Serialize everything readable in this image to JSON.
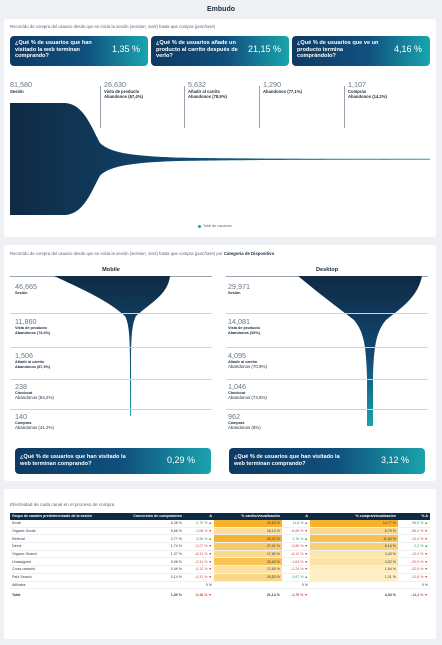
{
  "header": {
    "title": "Embudo"
  },
  "section1": {
    "desc_pre": "Recorrido de compra del usuario desde que se inicia la sesión (",
    "desc_em1": "session_start",
    "desc_mid": ") hasta que compra (",
    "desc_em2": "purchase",
    "desc_post": ")",
    "kpis": [
      {
        "question": "¿Qué % de usuarios que han visitado la web terminan comprando?",
        "value": "1,35 %"
      },
      {
        "question": "¿Qué % de usuarios añade un producto al carrito después de verlo?",
        "value": "21,15 %"
      },
      {
        "question": "¿Qué % de usuarios que ve un producto termina comprándolo?",
        "value": "4,16 %"
      }
    ],
    "stages": [
      {
        "value": "81,580",
        "label": "Sesión",
        "abandon": ""
      },
      {
        "value": "26,630",
        "label": "Vista de producto",
        "abandon": "Abandonos (67,4%)"
      },
      {
        "value": "5,632",
        "label": "Añadir al carrito",
        "abandon": "Abandonos (78,9%)"
      },
      {
        "value": "1,290",
        "label": "Checkout",
        "abandon": "Abandonos (77,1%)"
      },
      {
        "value": "1,107",
        "label": "Compras",
        "abandon": "Abandonos (14,2%)"
      }
    ],
    "legend": "Total de usuarios",
    "colors": {
      "dark": "#0f2a44",
      "teal": "#1aa4ad"
    }
  },
  "section2": {
    "desc_pre": "Recorrido de compra del usuario desde que se inicia la sesión (",
    "desc_em1": "session_start",
    "desc_mid": ") hasta que compra (",
    "desc_em2": "purchase",
    "desc_post": ") por ",
    "desc_bold": "Categoría de Dispositivo",
    "panels": [
      {
        "title": "Mobile",
        "stages": [
          {
            "value": "46,665",
            "label": "Sesión",
            "abandon": ""
          },
          {
            "value": "11,860",
            "label": "Vista de producto",
            "abandon": "Abandonos (74,6%)"
          },
          {
            "value": "1,506",
            "label": "Añadir al carrito",
            "abandon": "Abandonos (87,3%)"
          },
          {
            "value": "238",
            "label": "Checkout",
            "abandon": "Abandonos (84,2%)"
          },
          {
            "value": "140",
            "label": "Compras",
            "abandon": "Abandonos (41,2%)"
          }
        ],
        "kpi": {
          "question": "¿Qué % de usuarios que han visitado la web terminan comprando?",
          "value": "0,29 %"
        }
      },
      {
        "title": "Desktop",
        "stages": [
          {
            "value": "29,971",
            "label": "Sesión",
            "abandon": ""
          },
          {
            "value": "14,081",
            "label": "Vista de producto",
            "abandon": "Abandonos (53%)"
          },
          {
            "value": "4,095",
            "label": "Añadir al carrito",
            "abandon": "Abandonos (70,9%)"
          },
          {
            "value": "1,046",
            "label": "Checkout",
            "abandon": "Abandonos (74,5%)"
          },
          {
            "value": "962",
            "label": "Compras",
            "abandon": "Abandonos (8%)"
          }
        ],
        "kpi": {
          "question": "¿Qué % de usuarios que han visitado la web terminan comprando?",
          "value": "3,12 %"
        }
      }
    ]
  },
  "section3": {
    "title": "Efectividad de cada canal en el proceso de compra",
    "columns": [
      "Grupo de canales predeterminado de la sesión",
      "Conversión de compradores",
      "Δ",
      "% carrito/visualización",
      "Δ",
      "% compra/visualización",
      "% Δ"
    ],
    "rows": [
      [
        "Email",
        "6,38 %",
        "2,75 % ▲",
        "40,63 %",
        "11,8 % ▲",
        "14,77 %",
        "96,5 % ▲"
      ],
      [
        "Organic Social",
        "5,66 %",
        "-1,08 % ▼",
        "16,13 %",
        "-6,69 % ▼",
        "6,79 %",
        "-56,2 % ▼"
      ],
      [
        "Referral",
        "2,77 %",
        "3,96 % ▲",
        "40,33 %",
        "1,76 % ▲",
        "11,63 %",
        "-10,3 % ▼"
      ],
      [
        "Direct",
        "1,74 %",
        "-0,27 % ▼",
        "27,01 %",
        "-0,86 % ▼",
        "8,16 %",
        "2,3 % ▲"
      ],
      [
        "Organic Search",
        "1,07 %",
        "-6,31 % ▼",
        "17,82 %",
        "-6,12 % ▼",
        "3,43 %",
        "-12,4 % ▼"
      ],
      [
        "Unassigned",
        "0,98 %",
        "-2,31 % ▼",
        "30,63 %",
        "-1,64 % ▼",
        "4,02 %",
        "-20,9 % ▼"
      ],
      [
        "Cross-network",
        "0,49 %",
        "-0,12 % ▼",
        "12,85 %",
        "-2,24 % ▼",
        "1,64 %",
        "-32,9 % ▼"
      ],
      [
        "Paid Search",
        "0,14 %",
        "-0,31 % ▼",
        "18,53 %",
        "0,87 % ▲",
        "1,31 %",
        "-12,8 % ▼"
      ],
      [
        "Affiliates",
        "",
        "0 %",
        "",
        "0 %",
        "",
        "0 %"
      ]
    ],
    "total": [
      "Total",
      "1,30 %",
      "-0,48 % ▼",
      "21,14 %",
      "-1,75 % ▼",
      "4,33 %",
      "-14,4 % ▼"
    ],
    "heat": {
      "cart": [
        1.0,
        0.35,
        0.99,
        0.65,
        0.42,
        0.75,
        0.3,
        0.45,
        0
      ],
      "purchase": [
        1.0,
        0.45,
        0.8,
        0.55,
        0.25,
        0.28,
        0.12,
        0.1,
        0
      ]
    }
  }
}
